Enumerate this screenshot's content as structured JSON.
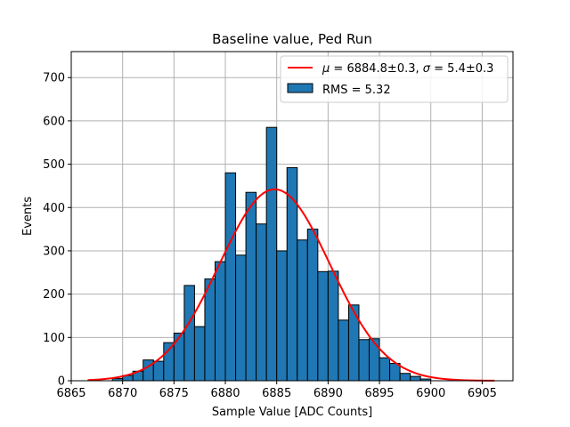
{
  "chart_data": {
    "type": "bar",
    "title": "Baseline value, Ped Run",
    "xlabel": "Sample Value [ADC Counts]",
    "ylabel": "Events",
    "xlim": [
      6865,
      6908
    ],
    "ylim": [
      0,
      760
    ],
    "grid": true,
    "x_ticks": [
      6865,
      6870,
      6875,
      6880,
      6885,
      6890,
      6895,
      6900,
      6905
    ],
    "y_ticks": [
      0,
      100,
      200,
      300,
      400,
      500,
      600,
      700
    ],
    "bin_width": 1,
    "series": [
      {
        "name": "RMS = 5.32",
        "type": "histogram",
        "color": "#1f77b4",
        "bins": [
          {
            "left": 6869,
            "count": 5
          },
          {
            "left": 6870,
            "count": 12
          },
          {
            "left": 6871,
            "count": 22
          },
          {
            "left": 6872,
            "count": 48
          },
          {
            "left": 6873,
            "count": 45
          },
          {
            "left": 6874,
            "count": 88
          },
          {
            "left": 6875,
            "count": 110
          },
          {
            "left": 6876,
            "count": 220
          },
          {
            "left": 6877,
            "count": 125
          },
          {
            "left": 6878,
            "count": 235
          },
          {
            "left": 6879,
            "count": 275
          },
          {
            "left": 6880,
            "count": 480
          },
          {
            "left": 6881,
            "count": 290
          },
          {
            "left": 6882,
            "count": 435
          },
          {
            "left": 6883,
            "count": 362
          },
          {
            "left": 6884,
            "count": 585
          },
          {
            "left": 6885,
            "count": 300
          },
          {
            "left": 6886,
            "count": 492
          },
          {
            "left": 6887,
            "count": 325
          },
          {
            "left": 6888,
            "count": 350
          },
          {
            "left": 6889,
            "count": 252
          },
          {
            "left": 6890,
            "count": 253
          },
          {
            "left": 6891,
            "count": 140
          },
          {
            "left": 6892,
            "count": 175
          },
          {
            "left": 6893,
            "count": 95
          },
          {
            "left": 6894,
            "count": 97
          },
          {
            "left": 6895,
            "count": 53
          },
          {
            "left": 6896,
            "count": 40
          },
          {
            "left": 6897,
            "count": 17
          },
          {
            "left": 6898,
            "count": 10
          },
          {
            "left": 6899,
            "count": 4
          }
        ]
      },
      {
        "name": "μ = 6884.8±0.3, σ = 5.4±0.3",
        "type": "gaussian-fit",
        "color": "#ff0000",
        "mu": 6884.8,
        "sigma": 5.4,
        "amplitude": 442,
        "x_range": [
          6866.6,
          6906.2
        ]
      }
    ],
    "legend": {
      "position": "top-right",
      "fit_prefix_mu": "μ",
      "fit_eq1": " = 6884.8±0.3, ",
      "fit_prefix_sigma": "σ",
      "fit_eq2": " = 5.4±0.3",
      "hist_label": "RMS = 5.32"
    }
  }
}
